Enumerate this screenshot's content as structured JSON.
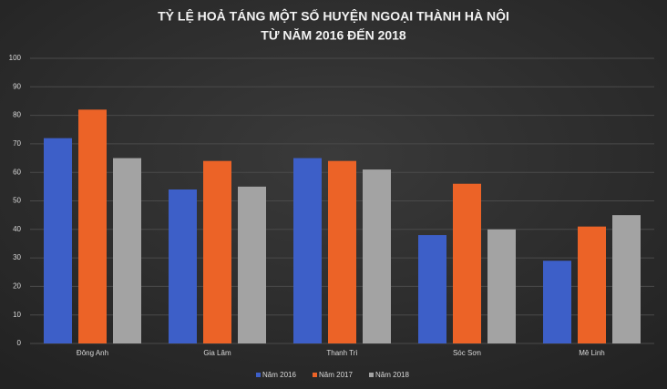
{
  "chart_data": {
    "type": "bar",
    "title": [
      "TỶ LỆ HOẢ TÁNG MỘT SỐ HUYỆN NGOẠI THÀNH HÀ NỘI",
      "TỪ NĂM 2016 ĐẾN 2018"
    ],
    "categories": [
      "Đông Anh",
      "Gia Lâm",
      "Thanh Trì",
      "Sóc Sơn",
      "Mê Linh"
    ],
    "series": [
      {
        "name": "Năm 2016",
        "color": "#3d5fc8",
        "values": [
          72,
          54,
          65,
          38,
          29
        ]
      },
      {
        "name": "Năm 2017",
        "color": "#ec6327",
        "values": [
          82,
          64,
          64,
          56,
          41
        ]
      },
      {
        "name": "Năm 2018",
        "color": "#a3a3a3",
        "values": [
          65,
          55,
          61,
          40,
          45
        ]
      }
    ],
    "ylim": [
      0,
      100
    ],
    "yticks": [
      0,
      10,
      20,
      30,
      40,
      50,
      60,
      70,
      80,
      90,
      100
    ],
    "grid": true,
    "legend": "bottom"
  }
}
